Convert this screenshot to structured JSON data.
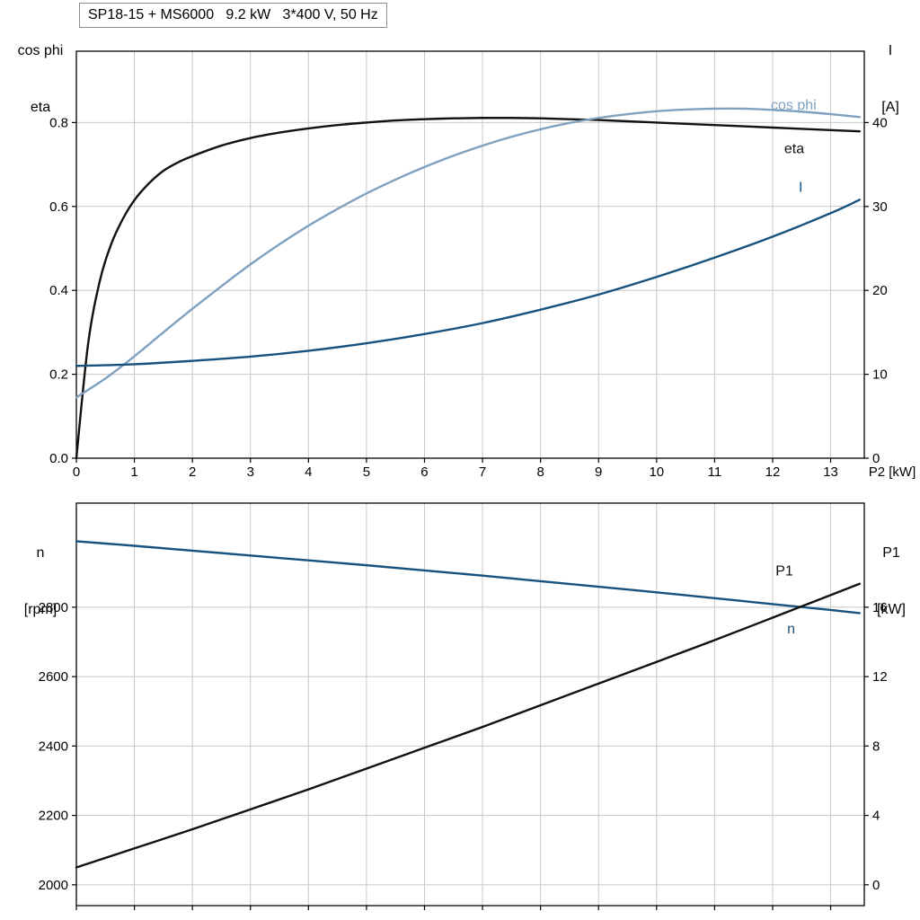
{
  "colors": {
    "black_curve": "#111111",
    "light_blue_curve": "#7fa1c0",
    "dark_blue_curve": "#17517e",
    "grid": "#c8c8c8",
    "axis": "#000000",
    "title_border": "#8c8c8c"
  },
  "chart_data": [
    {
      "id": "motor-electrical",
      "type": "line",
      "title": "SP18-15 + MS6000   9.2 kW   3*400 V, 50 Hz",
      "grid": true,
      "x": {
        "label": "P2 [kW]",
        "lim": [
          0,
          13.58
        ],
        "ticks": [
          0,
          1,
          2,
          3,
          4,
          5,
          6,
          7,
          8,
          9,
          10,
          11,
          12,
          13
        ],
        "tick_labels": [
          "0",
          "1",
          "2",
          "3",
          "4",
          "5",
          "6",
          "7",
          "8",
          "9",
          "10",
          "11",
          "12",
          "13"
        ],
        "show_tick_labels": true
      },
      "y_left": {
        "label": [
          "cos phi",
          "eta"
        ],
        "lim": [
          0,
          0.97
        ],
        "ticks": [
          0,
          0.2,
          0.4,
          0.6,
          0.8
        ],
        "tick_labels": [
          "0.0",
          "0.2",
          "0.4",
          "0.6",
          "0.8"
        ]
      },
      "y_right": {
        "label": [
          "I",
          "[A]"
        ],
        "lim": [
          0,
          48.5
        ],
        "ticks": [
          0,
          10,
          20,
          30,
          40
        ],
        "tick_labels": [
          "0",
          "10",
          "20",
          "30",
          "40"
        ]
      },
      "series": [
        {
          "name": "eta",
          "axis": "left",
          "color_key": "black_curve",
          "x": [
            0,
            0.2,
            0.4,
            0.6,
            0.8,
            1,
            1.25,
            1.5,
            1.75,
            2,
            2.5,
            3,
            3.5,
            4,
            4.5,
            5,
            5.5,
            6,
            6.5,
            7,
            7.5,
            8,
            8.5,
            9,
            9.5,
            10,
            10.5,
            11,
            11.5,
            12,
            12.5,
            13,
            13.5
          ],
          "y": [
            0,
            0.27,
            0.42,
            0.51,
            0.57,
            0.615,
            0.655,
            0.685,
            0.705,
            0.72,
            0.745,
            0.763,
            0.776,
            0.786,
            0.794,
            0.8,
            0.805,
            0.808,
            0.81,
            0.811,
            0.811,
            0.81,
            0.808,
            0.806,
            0.803,
            0.8,
            0.797,
            0.794,
            0.791,
            0.788,
            0.785,
            0.782,
            0.779
          ]
        },
        {
          "name": "cos phi",
          "axis": "left",
          "color_key": "light_blue_curve",
          "x": [
            0,
            0.5,
            1,
            1.5,
            2,
            2.5,
            3,
            3.5,
            4,
            4.5,
            5,
            5.5,
            6,
            6.5,
            7,
            7.5,
            8,
            8.5,
            9,
            9.5,
            10,
            10.5,
            11,
            11.5,
            12,
            12.5,
            13,
            13.5
          ],
          "y": [
            0.145,
            0.19,
            0.243,
            0.3,
            0.356,
            0.41,
            0.462,
            0.51,
            0.554,
            0.594,
            0.631,
            0.664,
            0.694,
            0.721,
            0.745,
            0.766,
            0.784,
            0.799,
            0.811,
            0.82,
            0.827,
            0.831,
            0.833,
            0.833,
            0.83,
            0.826,
            0.82,
            0.813
          ]
        },
        {
          "name": "I",
          "axis": "right",
          "color_key": "dark_blue_curve",
          "x": [
            0,
            1,
            2,
            3,
            4,
            5,
            6,
            7,
            8,
            9,
            10,
            11,
            12,
            13,
            13.5
          ],
          "y": [
            11,
            11.2,
            11.6,
            12.1,
            12.8,
            13.7,
            14.8,
            16.1,
            17.7,
            19.5,
            21.6,
            23.9,
            26.4,
            29.2,
            30.8
          ]
        }
      ],
      "curve_labels": [
        {
          "text": "cos phi",
          "color_key": "light_blue_curve",
          "axis": "left",
          "x": 11.97,
          "y": 0.842
        },
        {
          "text": "eta",
          "color_key": "black_curve",
          "axis": "left",
          "x": 12.2,
          "y": 0.738
        },
        {
          "text": "I",
          "color_key": "dark_blue_curve",
          "axis": "right",
          "x": 12.45,
          "y": 32.3
        }
      ]
    },
    {
      "id": "motor-mechanical",
      "type": "line",
      "title": "",
      "grid": true,
      "x": {
        "label": "",
        "lim": [
          0,
          13.58
        ],
        "ticks": [
          0,
          1,
          2,
          3,
          4,
          5,
          6,
          7,
          8,
          9,
          10,
          11,
          12,
          13
        ],
        "tick_labels": [
          "0",
          "1",
          "2",
          "3",
          "4",
          "5",
          "6",
          "7",
          "8",
          "9",
          "10",
          "11",
          "12",
          "13"
        ],
        "show_tick_labels": false
      },
      "y_left": {
        "label": [
          "n",
          "[rpm]"
        ],
        "lim": [
          1940,
          3100
        ],
        "ticks": [
          2000,
          2200,
          2400,
          2600,
          2800
        ],
        "tick_labels": [
          "2000",
          "2200",
          "2400",
          "2600",
          "2800"
        ]
      },
      "y_right": {
        "label": [
          "P1",
          "[kW]"
        ],
        "lim": [
          -1.2,
          22
        ],
        "ticks": [
          0,
          4,
          8,
          12,
          16
        ],
        "tick_labels": [
          "0",
          "4",
          "8",
          "12",
          "16"
        ]
      },
      "series": [
        {
          "name": "n",
          "axis": "left",
          "color_key": "dark_blue_curve",
          "x": [
            0,
            1,
            2,
            3,
            4,
            5,
            6,
            7,
            8,
            9,
            10,
            11,
            12,
            13,
            13.5
          ],
          "y": [
            2990,
            2977,
            2963,
            2949,
            2935,
            2921,
            2906,
            2891,
            2875,
            2859,
            2843,
            2826,
            2809,
            2792,
            2783
          ]
        },
        {
          "name": "P1",
          "axis": "right",
          "color_key": "black_curve",
          "x": [
            0,
            1,
            2,
            3,
            4,
            5,
            6,
            7,
            8,
            9,
            10,
            11,
            12,
            13,
            13.5
          ],
          "y": [
            1.0,
            2.1,
            3.2,
            4.35,
            5.5,
            6.7,
            7.9,
            9.1,
            10.35,
            11.6,
            12.85,
            14.1,
            15.4,
            16.7,
            17.35
          ]
        }
      ],
      "curve_labels": [
        {
          "text": "P1",
          "color_key": "black_curve",
          "axis": "right",
          "x": 12.05,
          "y": 18.1
        },
        {
          "text": "n",
          "color_key": "dark_blue_curve",
          "axis": "left",
          "x": 12.25,
          "y": 2738
        }
      ]
    }
  ]
}
